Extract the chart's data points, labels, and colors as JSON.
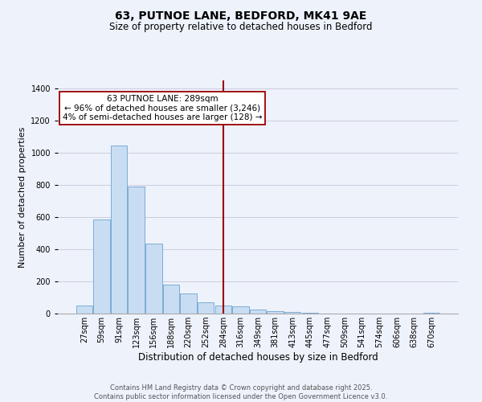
{
  "title": "63, PUTNOE LANE, BEDFORD, MK41 9AE",
  "subtitle": "Size of property relative to detached houses in Bedford",
  "xlabel": "Distribution of detached houses by size in Bedford",
  "ylabel": "Number of detached properties",
  "bin_labels": [
    "27sqm",
    "59sqm",
    "91sqm",
    "123sqm",
    "156sqm",
    "188sqm",
    "220sqm",
    "252sqm",
    "284sqm",
    "316sqm",
    "349sqm",
    "381sqm",
    "413sqm",
    "445sqm",
    "477sqm",
    "509sqm",
    "541sqm",
    "574sqm",
    "606sqm",
    "638sqm",
    "670sqm"
  ],
  "bar_values": [
    50,
    585,
    1045,
    790,
    435,
    180,
    125,
    70,
    50,
    45,
    25,
    15,
    10,
    5,
    2,
    1,
    0,
    0,
    0,
    0,
    5
  ],
  "bar_color": "#c9ddf2",
  "bar_edge_color": "#7aadd4",
  "vline_index": 8,
  "property_label": "63 PUTNOE LANE: 289sqm",
  "annotation_line1": "← 96% of detached houses are smaller (3,246)",
  "annotation_line2": "4% of semi-detached houses are larger (128) →",
  "vline_color": "#990000",
  "annotation_box_edgecolor": "#990000",
  "annotation_box_facecolor": "#ffffff",
  "background_color": "#eef2fb",
  "ylim": [
    0,
    1450
  ],
  "yticks": [
    0,
    200,
    400,
    600,
    800,
    1000,
    1200,
    1400
  ],
  "grid_color": "#ccccdd",
  "footer_line1": "Contains HM Land Registry data © Crown copyright and database right 2025.",
  "footer_line2": "Contains public sector information licensed under the Open Government Licence v3.0.",
  "title_fontsize": 10,
  "subtitle_fontsize": 8.5,
  "xlabel_fontsize": 8.5,
  "ylabel_fontsize": 8,
  "tick_fontsize": 7,
  "annotation_fontsize": 7.5,
  "footer_fontsize": 6
}
